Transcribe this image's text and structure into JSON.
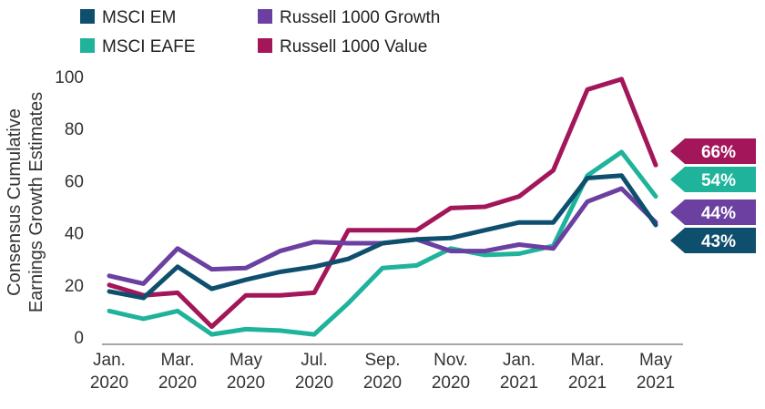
{
  "chart_data": {
    "type": "line",
    "title": "",
    "xlabel": "",
    "ylabel": [
      "Consensus Cumulative",
      "Earnings Growth Estimates"
    ],
    "ylim": [
      0,
      100
    ],
    "yticks": [
      0,
      20,
      40,
      60,
      80,
      100
    ],
    "grid": false,
    "legend_position": "top-left",
    "x_tick_labels": [
      {
        "month": "Jan.",
        "year": "2020"
      },
      {
        "month": "Mar.",
        "year": "2020"
      },
      {
        "month": "May",
        "year": "2020"
      },
      {
        "month": "Jul.",
        "year": "2020"
      },
      {
        "month": "Sep.",
        "year": "2020"
      },
      {
        "month": "Nov.",
        "year": "2020"
      },
      {
        "month": "Jan.",
        "year": "2021"
      },
      {
        "month": "Mar.",
        "year": "2021"
      },
      {
        "month": "May",
        "year": "2021"
      }
    ],
    "series": [
      {
        "name": "Russell 1000 Value",
        "color": "#a3165a",
        "end_label": "66%",
        "values": [
          20,
          16,
          17,
          4,
          16,
          16,
          17,
          41,
          41,
          41,
          49.5,
          50,
          54,
          64,
          95,
          99,
          66
        ]
      },
      {
        "name": "MSCI EAFE",
        "color": "#1fb39b",
        "end_label": "54%",
        "values": [
          10,
          7,
          10,
          1,
          3,
          2.5,
          1,
          13,
          26.5,
          27.5,
          34,
          31.5,
          32,
          35,
          62,
          71,
          54
        ]
      },
      {
        "name": "Russell 1000 Growth",
        "color": "#6b40a0",
        "end_label": "44%",
        "values": [
          23.5,
          20.5,
          34,
          26,
          26.5,
          33,
          36.5,
          36,
          36,
          37.5,
          33,
          33,
          35.5,
          34,
          52,
          57,
          44
        ]
      },
      {
        "name": "MSCI EM",
        "color": "#0f4f6e",
        "end_label": "43%",
        "values": [
          17.5,
          15,
          27,
          18.5,
          22,
          25,
          27,
          30,
          36,
          37.5,
          38,
          41,
          44,
          44,
          61,
          62,
          43
        ]
      }
    ],
    "legend": [
      {
        "name": "MSCI EM",
        "color": "#0f4f6e"
      },
      {
        "name": "Russell 1000 Growth",
        "color": "#6b40a0"
      },
      {
        "name": "MSCI EAFE",
        "color": "#1fb39b"
      },
      {
        "name": "Russell 1000 Value",
        "color": "#a3165a"
      }
    ]
  }
}
